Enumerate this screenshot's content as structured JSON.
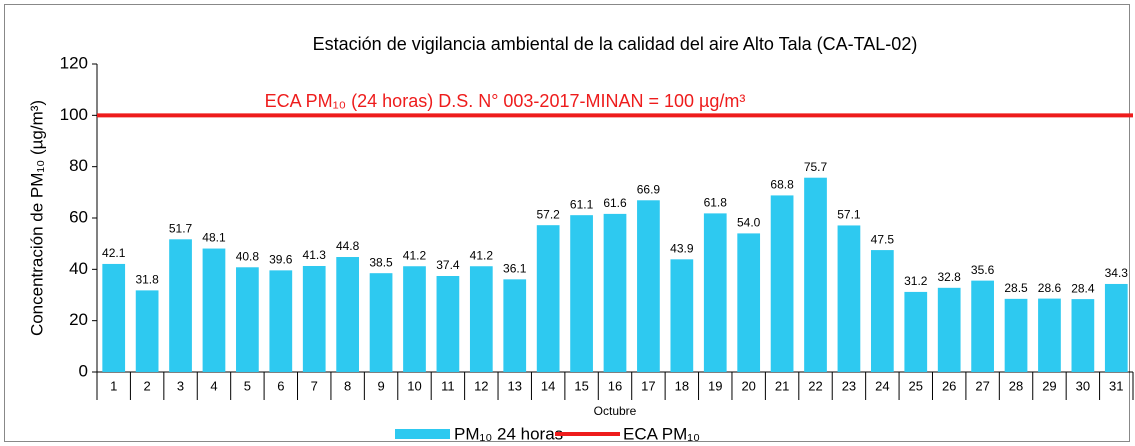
{
  "chart_data": {
    "type": "bar",
    "title": "Estación de vigilancia ambiental de la calidad del aire Alto Tala (CA-TAL-02)",
    "x_label": "Octubre",
    "y_label": "Concentración de PM₁₀ (µg/m³)",
    "categories": [
      "1",
      "2",
      "3",
      "4",
      "5",
      "6",
      "7",
      "8",
      "9",
      "10",
      "11",
      "12",
      "13",
      "14",
      "15",
      "16",
      "17",
      "18",
      "19",
      "20",
      "21",
      "22",
      "23",
      "24",
      "25",
      "26",
      "27",
      "28",
      "29",
      "30",
      "31"
    ],
    "series": [
      {
        "name": "PM₁₀ 24 horas",
        "color": "#2ec9f0",
        "values": [
          42.1,
          31.8,
          51.7,
          48.1,
          40.8,
          39.6,
          41.3,
          44.8,
          38.5,
          41.2,
          37.4,
          41.2,
          36.1,
          57.2,
          61.1,
          61.6,
          66.9,
          43.9,
          61.8,
          54.0,
          68.8,
          75.7,
          57.1,
          47.5,
          31.2,
          32.8,
          35.6,
          28.5,
          28.6,
          28.4,
          34.3
        ],
        "value_labels": [
          "42.1",
          "31.8",
          "51.7",
          "48.1",
          "40.8",
          "39.6",
          "41.3",
          "44.8",
          "38.5",
          "41.2",
          "37.4",
          "41.2",
          "36.1",
          "57.2",
          "61.1",
          "61.6",
          "66.9",
          "43.9",
          "61.8",
          "54.0",
          "68.8",
          "75.7",
          "57.1",
          "47.5",
          "31.2",
          "32.8",
          "35.6",
          "28.5",
          "28.6",
          "28.4",
          "34.3"
        ]
      }
    ],
    "reference_line": {
      "name": "ECA PM₁₀",
      "value": 100,
      "color": "#ee1c1c",
      "label": "ECA PM₁₀ (24 horas) D.S. N° 003-2017-MINAN = 100 µg/m³"
    },
    "ylim": [
      0,
      120
    ],
    "yticks": [
      0,
      20,
      40,
      60,
      80,
      100,
      120
    ],
    "grid": false,
    "legend": "bottom"
  }
}
